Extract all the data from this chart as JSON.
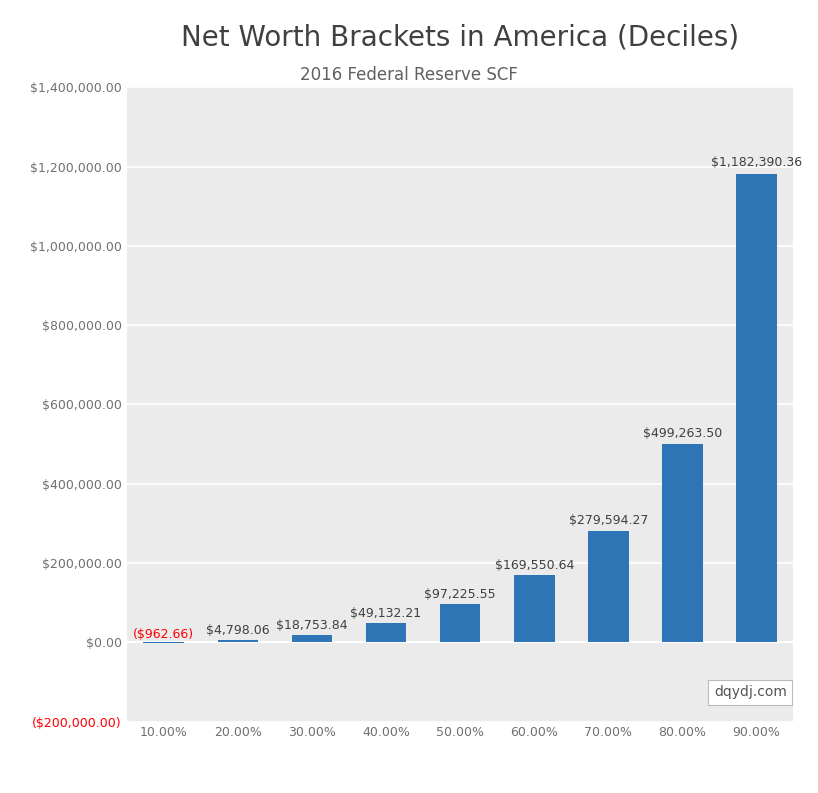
{
  "title": "Net Worth Brackets in America (Deciles)",
  "subtitle": "2016 Federal Reserve SCF",
  "categories": [
    "10.00%",
    "20.00%",
    "30.00%",
    "40.00%",
    "50.00%",
    "60.00%",
    "70.00%",
    "80.00%",
    "90.00%"
  ],
  "values": [
    -962.66,
    4798.06,
    18753.84,
    49132.21,
    97225.55,
    169550.64,
    279594.27,
    499263.5,
    1182390.36
  ],
  "bar_color": "#2e75b6",
  "negative_label_color": "#FF0000",
  "positive_label_color": "#404040",
  "background_color": "#EBEBEB",
  "outer_background": "#FFFFFF",
  "ylim_min": -200000,
  "ylim_max": 1400000,
  "yticks": [
    -200000,
    0,
    200000,
    400000,
    600000,
    800000,
    1000000,
    1200000,
    1400000
  ],
  "watermark": "dqydj.com",
  "title_fontsize": 20,
  "subtitle_fontsize": 12,
  "label_fontsize": 9,
  "tick_fontsize": 9,
  "watermark_fontsize": 10,
  "bar_width": 0.55
}
